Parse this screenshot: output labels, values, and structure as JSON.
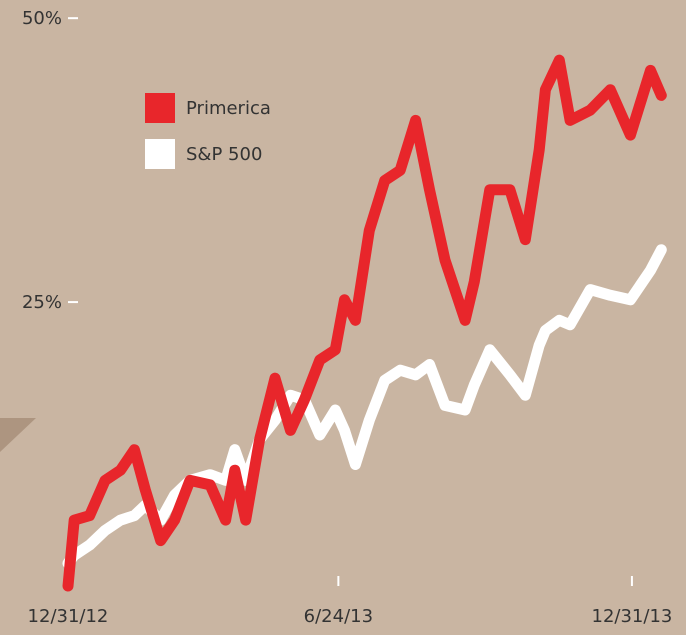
{
  "chart_data": {
    "type": "line",
    "x": [
      "2012-12-31",
      "2013-01-04",
      "2013-01-14",
      "2013-01-24",
      "2013-02-03",
      "2013-02-12",
      "2013-02-19",
      "2013-03-01",
      "2013-03-10",
      "2013-03-20",
      "2013-04-02",
      "2013-04-12",
      "2013-04-18",
      "2013-04-25",
      "2013-05-04",
      "2013-05-14",
      "2013-05-24",
      "2013-06-02",
      "2013-06-12",
      "2013-06-22",
      "2013-06-28",
      "2013-07-05",
      "2013-07-14",
      "2013-07-24",
      "2013-08-03",
      "2013-08-13",
      "2013-08-22",
      "2013-09-01",
      "2013-09-14",
      "2013-09-20",
      "2013-09-30",
      "2013-10-13",
      "2013-10-23",
      "2013-11-01",
      "2013-11-05",
      "2013-11-14",
      "2013-11-21",
      "2013-12-04",
      "2013-12-17",
      "2013-12-30",
      "2014-01-12",
      "2014-01-19"
    ],
    "series": [
      {
        "name": "S&P 500",
        "color": "#ffffff",
        "values": [
          2,
          2.7,
          3.6,
          4.9,
          5.8,
          6.2,
          7.1,
          5.8,
          8,
          9.3,
          9.8,
          9.3,
          12,
          9.3,
          12.9,
          14.6,
          16.8,
          16.4,
          13.3,
          15.5,
          13.7,
          10.7,
          14.6,
          18.1,
          19,
          18.6,
          19.5,
          15.9,
          15.5,
          17.7,
          20.8,
          18.6,
          16.8,
          21.2,
          22.5,
          23.4,
          23,
          26.1,
          25.6,
          25.2,
          27.8,
          29.6
        ]
      },
      {
        "name": "Primerica",
        "color": "#e8262b",
        "values": [
          0,
          5.8,
          6.2,
          9.3,
          10.2,
          12,
          8.5,
          4,
          5.8,
          9.3,
          8.9,
          5.8,
          10.2,
          5.8,
          12.9,
          18.3,
          13.7,
          16.4,
          19.9,
          20.8,
          25.2,
          23.4,
          31.3,
          35.7,
          36.6,
          41,
          34.9,
          28.7,
          23.4,
          26.8,
          34.9,
          34.9,
          30.5,
          38.4,
          43.7,
          46.3,
          41,
          41.9,
          43.7,
          39.7,
          45.4,
          43.2
        ]
      }
    ],
    "xlim": [
      "2012-11-17",
      "2014-02-04"
    ],
    "xticks": [
      {
        "value": "2012-12-31",
        "label": "12/31/12"
      },
      {
        "value": "2013-06-24",
        "label": "6/24/13"
      },
      {
        "value": "2013-12-31",
        "label": "12/31/13"
      }
    ],
    "ylim": [
      0,
      51.6
    ],
    "yticks": [
      {
        "value": 25,
        "label": "25%"
      },
      {
        "value": 50,
        "label": "50%"
      }
    ]
  }
}
